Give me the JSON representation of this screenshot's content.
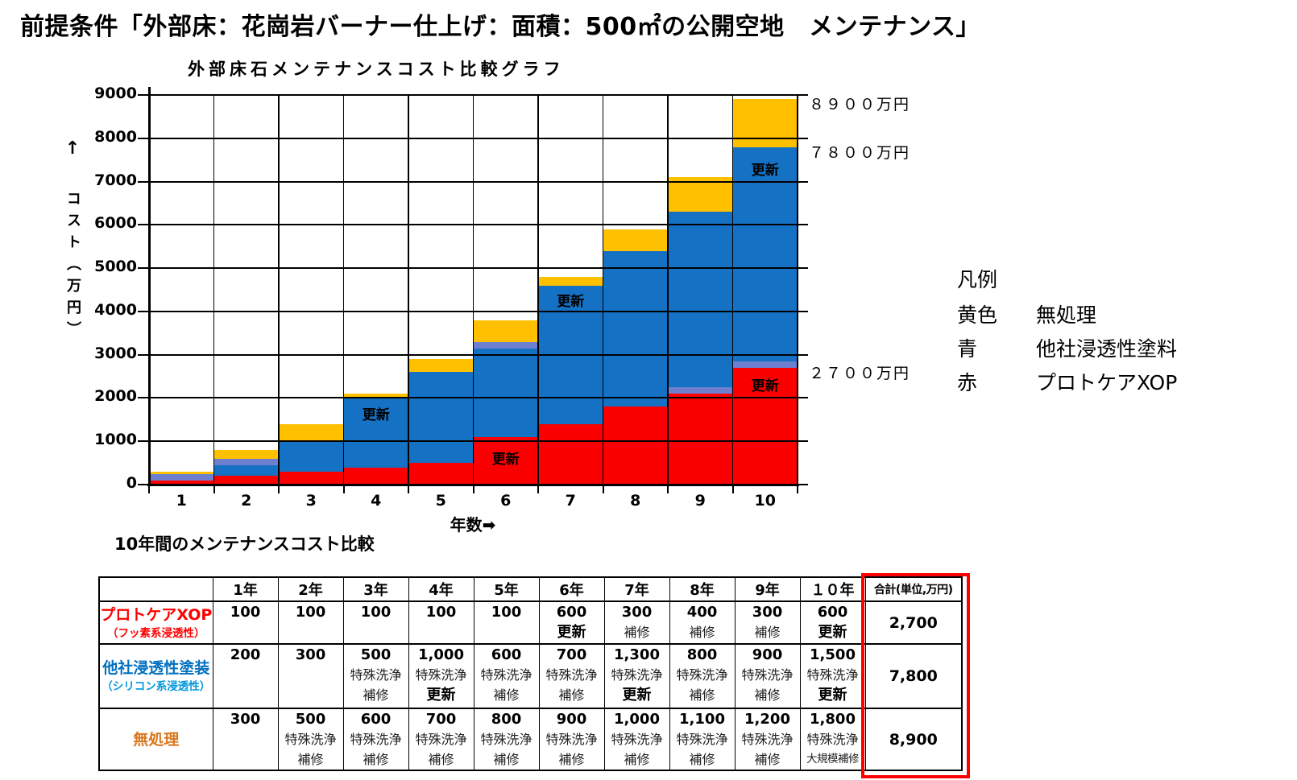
{
  "page_title": "前提条件「外部床：花崗岩バーナー仕上げ：面積：500㎡の公開空地　メンテナンス」",
  "chart": {
    "title": "外部床石メンテナンスコスト比較グラフ",
    "y_axis": {
      "arrow": "↑",
      "label": "コスト（万円）"
    },
    "x_axis": {
      "label": "年数➡"
    }
  },
  "chart_data": {
    "type": "bar",
    "mode": "overlay-cumulative",
    "title": "外部床石メンテナンスコスト比較グラフ",
    "xlabel": "年数",
    "ylabel": "コスト（万円）",
    "categories": [
      "1",
      "2",
      "3",
      "4",
      "5",
      "6",
      "7",
      "8",
      "9",
      "10"
    ],
    "ylim": [
      0,
      9000
    ],
    "ytick_step": 1000,
    "grid": true,
    "series": [
      {
        "name": "無処理",
        "color": "#FFC000",
        "annual": [
          300,
          500,
          600,
          700,
          800,
          900,
          1000,
          1100,
          1200,
          1800
        ],
        "cumulative": [
          300,
          800,
          1400,
          2100,
          2900,
          3800,
          4800,
          5900,
          7100,
          8900
        ]
      },
      {
        "name": "他社浸透性塗料",
        "color": "#1571C4",
        "annual": [
          200,
          300,
          500,
          1000,
          600,
          700,
          1300,
          800,
          900,
          1500
        ],
        "cumulative": [
          200,
          500,
          1000,
          2000,
          2600,
          3300,
          4600,
          5400,
          6300,
          7800
        ]
      },
      {
        "name": "プロトケアXOP",
        "color": "#FB0000",
        "annual": [
          100,
          100,
          100,
          100,
          100,
          600,
          300,
          400,
          300,
          600
        ],
        "cumulative": [
          100,
          200,
          300,
          400,
          500,
          1100,
          1400,
          1800,
          2100,
          2700
        ]
      }
    ],
    "bar_labels": [
      {
        "category": 4,
        "text": "更新",
        "value": 1650
      },
      {
        "category": 6,
        "text": "更新",
        "value": 640
      },
      {
        "category": 7,
        "text": "更新",
        "value": 4280
      },
      {
        "category": 10,
        "text": "更新",
        "value": 7300
      },
      {
        "category": 10,
        "text": "更新",
        "value": 2330
      }
    ],
    "right_annotations": [
      {
        "text": "８９００万円",
        "value": 8900
      },
      {
        "text": "７８００万円",
        "value": 7800
      },
      {
        "text": "２７００万円",
        "value": 2700
      }
    ],
    "artifact_stripes": [
      {
        "category": 1,
        "value": 100
      },
      {
        "category": 2,
        "value": 450
      },
      {
        "category": 6,
        "value": 3150
      },
      {
        "category": 9,
        "value": 2100
      },
      {
        "category": 10,
        "value": 2700
      }
    ],
    "stripe_color": "#6F7FD0"
  },
  "legend": {
    "title": "凡例",
    "items": [
      {
        "term": "黄色",
        "label": "無処理"
      },
      {
        "term": "青",
        "label": "他社浸透性塗料"
      },
      {
        "term": "赤",
        "label": "プロトケアXOP"
      }
    ]
  },
  "table": {
    "title": "10年間のメンテナンスコスト比較",
    "col_headers": [
      "",
      "1年",
      "2年",
      "3年",
      "4年",
      "5年",
      "6年",
      "7年",
      "8年",
      "9年",
      "１０年",
      "合計(単位,万円)"
    ],
    "rows": [
      {
        "label": "プロトケアXOP",
        "sublabel": "（フッ素系浸透性）",
        "color": "#FF0000",
        "subcolor": "#FF0000",
        "cells": [
          [
            "100"
          ],
          [
            "100"
          ],
          [
            "100"
          ],
          [
            "100"
          ],
          [
            "100"
          ],
          [
            "600",
            "更新"
          ],
          [
            "300",
            "補修"
          ],
          [
            "400",
            "補修"
          ],
          [
            "300",
            "補修"
          ],
          [
            "600",
            "更新"
          ]
        ],
        "total": "2,700"
      },
      {
        "label": "他社浸透性塗装",
        "sublabel": "（シリコン系浸透性）",
        "color": "#0070C0",
        "subcolor": "#0097DC",
        "cells": [
          [
            "200"
          ],
          [
            "300"
          ],
          [
            "500",
            "特殊洗浄",
            "補修"
          ],
          [
            "1,000",
            "特殊洗浄",
            "更新"
          ],
          [
            "600",
            "特殊洗浄",
            "補修"
          ],
          [
            "700",
            "特殊洗浄",
            "補修"
          ],
          [
            "1,300",
            "特殊洗浄",
            "更新"
          ],
          [
            "800",
            "特殊洗浄",
            "補修"
          ],
          [
            "900",
            "特殊洗浄",
            "補修"
          ],
          [
            "1,500",
            "特殊洗浄",
            "更新"
          ]
        ],
        "total": "7,800"
      },
      {
        "label": "無処理",
        "sublabel": "",
        "color": "#D9771E",
        "subcolor": "#D9771E",
        "cells": [
          [
            "300"
          ],
          [
            "500",
            "特殊洗浄",
            "補修"
          ],
          [
            "600",
            "特殊洗浄",
            "補修"
          ],
          [
            "700",
            "特殊洗浄",
            "補修"
          ],
          [
            "800",
            "特殊洗浄",
            "補修"
          ],
          [
            "900",
            "特殊洗浄",
            "補修"
          ],
          [
            "1,000",
            "特殊洗浄",
            "補修"
          ],
          [
            "1,100",
            "特殊洗浄",
            "補修"
          ],
          [
            "1,200",
            "特殊洗浄",
            "補修"
          ],
          [
            "1,800",
            "特殊洗浄",
            "大規模補修"
          ]
        ],
        "total": "8,900"
      }
    ]
  }
}
